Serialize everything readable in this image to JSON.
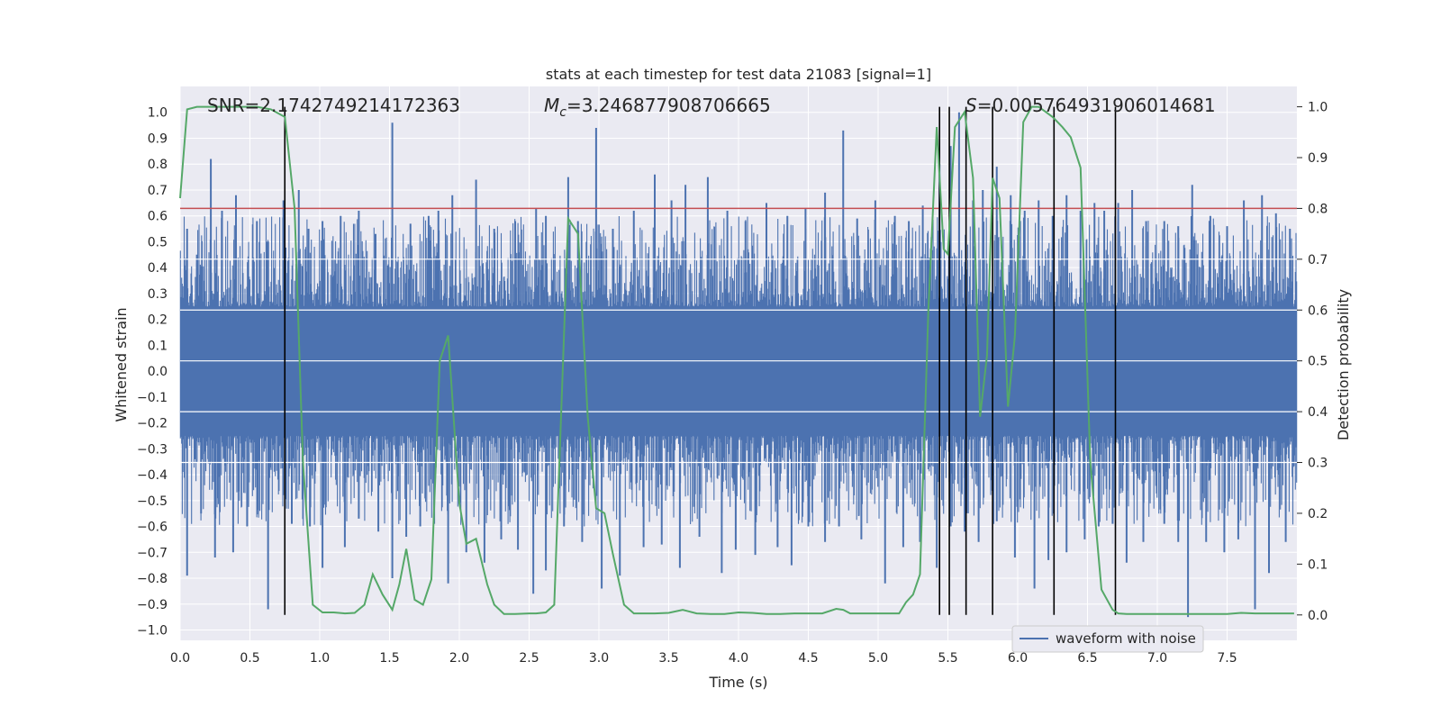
{
  "chart_data": {
    "type": "line",
    "title": "stats at each timestep for test data 21083 [signal=1]",
    "xlabel": "Time (s)",
    "ylabel": "Whitened strain",
    "ylabel_right": "Detection probability",
    "xlim": [
      0,
      8.0
    ],
    "ylim": [
      -1.04,
      1.1
    ],
    "ylim_right": [
      -0.05,
      1.04
    ],
    "x_ticks": [
      0.0,
      0.5,
      1.0,
      1.5,
      2.0,
      2.5,
      3.0,
      3.5,
      4.0,
      4.5,
      5.0,
      5.5,
      6.0,
      6.5,
      7.0,
      7.5
    ],
    "x_tick_labels": [
      "0.0",
      "0.5",
      "1.0",
      "1.5",
      "2.0",
      "2.5",
      "3.0",
      "3.5",
      "4.0",
      "4.5",
      "5.0",
      "5.5",
      "6.0",
      "6.5",
      "7.0",
      "7.5"
    ],
    "y_ticks": [
      1.0,
      0.9,
      0.8,
      0.7,
      0.6,
      0.5,
      0.4,
      0.3,
      0.2,
      0.1,
      0.0,
      -0.1,
      -0.2,
      -0.3,
      -0.4,
      -0.5,
      -0.6,
      -0.7,
      -0.8,
      -0.9,
      -1.0
    ],
    "y_tick_labels": [
      "1.0",
      "0.9",
      "0.8",
      "0.7",
      "0.6",
      "0.5",
      "0.4",
      "0.3",
      "0.2",
      "0.1",
      "0.0",
      "−0.1",
      "−0.2",
      "−0.3",
      "−0.4",
      "−0.5",
      "−0.6",
      "−0.7",
      "−0.8",
      "−0.9",
      "−1.0"
    ],
    "y_right_ticks": [
      1.0,
      0.9,
      0.8,
      0.7,
      0.6,
      0.5,
      0.4,
      0.3,
      0.2,
      0.1,
      0.0
    ],
    "y_right_tick_labels": [
      "1.0",
      "0.9",
      "0.8",
      "0.7",
      "0.6",
      "0.5",
      "0.4",
      "0.3",
      "0.2",
      "0.1",
      "0.0"
    ],
    "grid": true,
    "legend_position": "bottom-right",
    "annotations": {
      "snr": "SNR=2.1742749214172363",
      "mc_symbol": "M",
      "mc_sub": "c",
      "mc_value": "=3.246877908706665",
      "s_symbol": "S",
      "s_value": "=0.005764931906014681"
    },
    "threshold_line": {
      "y": 0.8,
      "color": "#c44e52"
    },
    "event_lines_x": [
      0.75,
      5.44,
      5.51,
      5.63,
      5.82,
      6.26,
      6.7
    ],
    "waveform": {
      "name": "waveform with noise",
      "color": "#4c72b0",
      "note_style": "dense noise",
      "spikes_high": [
        [
          0.05,
          0.55
        ],
        [
          0.12,
          0.45
        ],
        [
          0.22,
          0.82
        ],
        [
          0.3,
          0.62
        ],
        [
          0.4,
          0.68
        ],
        [
          0.55,
          0.58
        ],
        [
          0.62,
          0.5
        ],
        [
          0.74,
          0.66
        ],
        [
          0.85,
          0.7
        ],
        [
          0.92,
          0.55
        ],
        [
          1.02,
          0.58
        ],
        [
          1.15,
          0.6
        ],
        [
          1.28,
          0.62
        ],
        [
          1.4,
          0.53
        ],
        [
          1.52,
          0.96
        ],
        [
          1.65,
          0.57
        ],
        [
          1.78,
          0.6
        ],
        [
          1.85,
          0.62
        ],
        [
          1.95,
          0.68
        ],
        [
          2.12,
          0.74
        ],
        [
          2.25,
          0.55
        ],
        [
          2.4,
          0.58
        ],
        [
          2.55,
          0.63
        ],
        [
          2.62,
          0.6
        ],
        [
          2.78,
          0.75
        ],
        [
          2.85,
          0.58
        ],
        [
          2.98,
          0.94
        ],
        [
          3.1,
          0.55
        ],
        [
          3.25,
          0.62
        ],
        [
          3.4,
          0.76
        ],
        [
          3.52,
          0.66
        ],
        [
          3.62,
          0.72
        ],
        [
          3.78,
          0.75
        ],
        [
          3.92,
          0.62
        ],
        [
          4.05,
          0.58
        ],
        [
          4.2,
          0.65
        ],
        [
          4.35,
          0.6
        ],
        [
          4.48,
          0.63
        ],
        [
          4.62,
          0.69
        ],
        [
          4.75,
          0.93
        ],
        [
          4.85,
          0.59
        ],
        [
          4.98,
          0.66
        ],
        [
          5.12,
          0.6
        ],
        [
          5.22,
          0.58
        ],
        [
          5.32,
          0.64
        ],
        [
          5.44,
          0.8
        ],
        [
          5.52,
          0.87
        ],
        [
          5.58,
          1.0
        ],
        [
          5.68,
          0.66
        ],
        [
          5.75,
          0.7
        ],
        [
          5.85,
          0.79
        ],
        [
          5.95,
          0.68
        ],
        [
          6.05,
          0.62
        ],
        [
          6.15,
          0.66
        ],
        [
          6.25,
          0.6
        ],
        [
          6.35,
          0.68
        ],
        [
          6.45,
          0.62
        ],
        [
          6.55,
          0.65
        ],
        [
          6.62,
          0.62
        ],
        [
          6.72,
          0.65
        ],
        [
          6.82,
          0.7
        ],
        [
          6.92,
          0.58
        ],
        [
          7.05,
          0.58
        ],
        [
          7.15,
          0.56
        ],
        [
          7.25,
          0.72
        ],
        [
          7.38,
          0.6
        ],
        [
          7.5,
          0.56
        ],
        [
          7.62,
          0.66
        ],
        [
          7.75,
          0.68
        ],
        [
          7.85,
          0.61
        ],
        [
          7.95,
          0.55
        ]
      ],
      "spikes_low": [
        [
          0.05,
          -0.79
        ],
        [
          0.15,
          -0.55
        ],
        [
          0.25,
          -0.72
        ],
        [
          0.38,
          -0.7
        ],
        [
          0.48,
          -0.6
        ],
        [
          0.63,
          -0.92
        ],
        [
          0.8,
          -0.59
        ],
        [
          0.93,
          -0.6
        ],
        [
          1.02,
          -0.76
        ],
        [
          1.18,
          -0.68
        ],
        [
          1.28,
          -0.57
        ],
        [
          1.42,
          -0.62
        ],
        [
          1.52,
          -0.8
        ],
        [
          1.62,
          -0.64
        ],
        [
          1.72,
          -0.6
        ],
        [
          1.82,
          -0.59
        ],
        [
          1.92,
          -0.82
        ],
        [
          2.05,
          -0.7
        ],
        [
          2.18,
          -0.74
        ],
        [
          2.3,
          -0.65
        ],
        [
          2.42,
          -0.69
        ],
        [
          2.53,
          -0.86
        ],
        [
          2.62,
          -0.77
        ],
        [
          2.75,
          -0.6
        ],
        [
          2.88,
          -0.66
        ],
        [
          3.02,
          -0.84
        ],
        [
          3.15,
          -0.79
        ],
        [
          3.32,
          -0.68
        ],
        [
          3.45,
          -0.67
        ],
        [
          3.58,
          -0.76
        ],
        [
          3.72,
          -0.64
        ],
        [
          3.88,
          -0.78
        ],
        [
          3.98,
          -0.69
        ],
        [
          4.12,
          -0.71
        ],
        [
          4.28,
          -0.68
        ],
        [
          4.38,
          -0.75
        ],
        [
          4.5,
          -0.6
        ],
        [
          4.62,
          -0.66
        ],
        [
          4.72,
          -0.6
        ],
        [
          4.88,
          -0.65
        ],
        [
          5.05,
          -0.82
        ],
        [
          5.18,
          -0.68
        ],
        [
          5.3,
          -0.66
        ],
        [
          5.42,
          -0.76
        ],
        [
          5.52,
          -0.6
        ],
        [
          5.62,
          -0.62
        ],
        [
          5.72,
          -0.66
        ],
        [
          5.85,
          -0.58
        ],
        [
          5.98,
          -0.72
        ],
        [
          6.12,
          -0.84
        ],
        [
          6.22,
          -0.73
        ],
        [
          6.35,
          -0.7
        ],
        [
          6.48,
          -0.65
        ],
        [
          6.58,
          -0.6
        ],
        [
          6.68,
          -0.59
        ],
        [
          6.78,
          -0.74
        ],
        [
          6.9,
          -0.66
        ],
        [
          7.05,
          -0.59
        ],
        [
          7.15,
          -0.66
        ],
        [
          7.22,
          -0.95
        ],
        [
          7.35,
          -0.66
        ],
        [
          7.48,
          -0.7
        ],
        [
          7.58,
          -0.65
        ],
        [
          7.7,
          -0.92
        ],
        [
          7.8,
          -0.78
        ],
        [
          7.92,
          -0.66
        ]
      ]
    },
    "probability": {
      "name": "detection probability",
      "color": "#55a868",
      "x": [
        0.0,
        0.05,
        0.12,
        0.25,
        0.4,
        0.55,
        0.65,
        0.75,
        0.82,
        0.88,
        0.95,
        1.02,
        1.1,
        1.18,
        1.25,
        1.32,
        1.38,
        1.45,
        1.52,
        1.57,
        1.62,
        1.68,
        1.74,
        1.8,
        1.86,
        1.92,
        2.0,
        2.05,
        2.12,
        2.2,
        2.25,
        2.32,
        2.4,
        2.5,
        2.55,
        2.62,
        2.68,
        2.78,
        2.85,
        2.92,
        2.98,
        3.04,
        3.1,
        3.18,
        3.25,
        3.4,
        3.5,
        3.6,
        3.7,
        3.8,
        3.9,
        4.0,
        4.1,
        4.2,
        4.3,
        4.4,
        4.5,
        4.6,
        4.7,
        4.75,
        4.8,
        4.9,
        5.0,
        5.1,
        5.15,
        5.2,
        5.25,
        5.3,
        5.36,
        5.42,
        5.47,
        5.5,
        5.55,
        5.62,
        5.68,
        5.73,
        5.78,
        5.82,
        5.87,
        5.93,
        5.98,
        6.04,
        6.1,
        6.15,
        6.2,
        6.25,
        6.32,
        6.38,
        6.45,
        6.52,
        6.6,
        6.68,
        6.72,
        6.78,
        6.85,
        6.92,
        7.0,
        7.1,
        7.2,
        7.3,
        7.4,
        7.5,
        7.6,
        7.7,
        7.8,
        7.9,
        7.98
      ],
      "y": [
        0.82,
        0.995,
        1.0,
        1.0,
        1.0,
        1.0,
        0.995,
        0.98,
        0.8,
        0.3,
        0.02,
        0.005,
        0.005,
        0.003,
        0.004,
        0.02,
        0.08,
        0.04,
        0.01,
        0.06,
        0.13,
        0.03,
        0.02,
        0.07,
        0.5,
        0.55,
        0.22,
        0.14,
        0.15,
        0.06,
        0.02,
        0.002,
        0.002,
        0.003,
        0.003,
        0.005,
        0.02,
        0.78,
        0.75,
        0.39,
        0.21,
        0.2,
        0.12,
        0.02,
        0.003,
        0.003,
        0.004,
        0.01,
        0.003,
        0.002,
        0.002,
        0.005,
        0.004,
        0.002,
        0.002,
        0.003,
        0.003,
        0.003,
        0.012,
        0.01,
        0.003,
        0.003,
        0.003,
        0.003,
        0.003,
        0.025,
        0.04,
        0.08,
        0.6,
        0.96,
        0.72,
        0.71,
        0.96,
        0.99,
        0.86,
        0.39,
        0.51,
        0.86,
        0.82,
        0.41,
        0.55,
        0.97,
        1.0,
        1.0,
        0.99,
        0.98,
        0.96,
        0.94,
        0.88,
        0.3,
        0.05,
        0.01,
        0.003,
        0.002,
        0.002,
        0.002,
        0.002,
        0.002,
        0.002,
        0.002,
        0.002,
        0.002,
        0.004,
        0.003,
        0.003,
        0.003,
        0.003
      ]
    }
  }
}
